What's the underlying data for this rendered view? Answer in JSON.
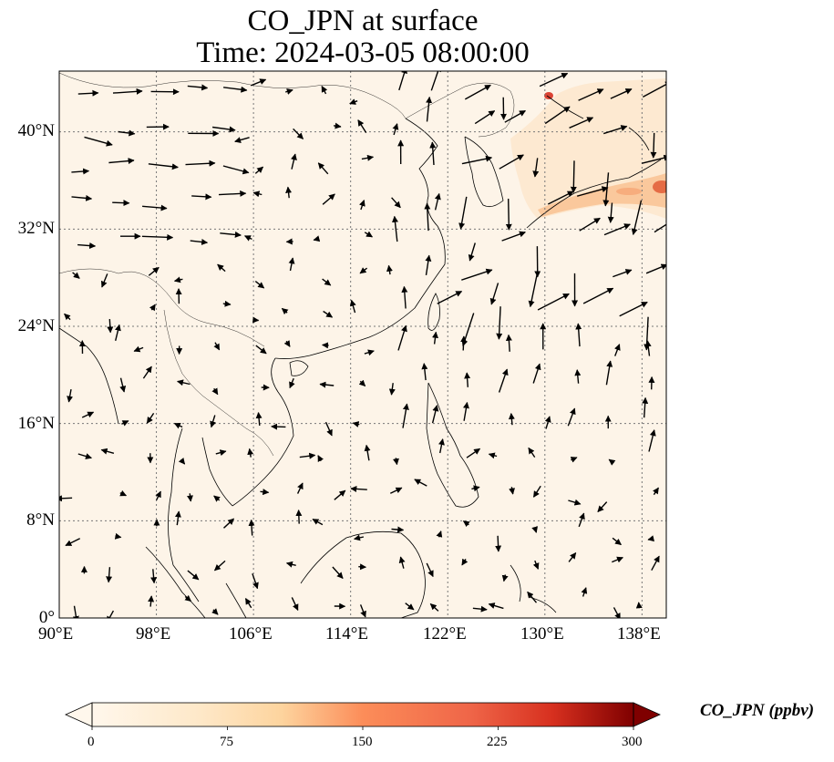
{
  "title": {
    "line1": "CO_JPN at surface",
    "line2": "Time: 2024-03-05 08:00:00"
  },
  "map": {
    "projection": "PlateCarree",
    "lon_range": [
      90,
      140
    ],
    "lat_range": [
      0,
      45
    ],
    "lat_ticks": [
      {
        "value": 40,
        "label": "40°N"
      },
      {
        "value": 32,
        "label": "32°N"
      },
      {
        "value": 24,
        "label": "24°N"
      },
      {
        "value": 16,
        "label": "16°N"
      },
      {
        "value": 8,
        "label": "8°N"
      },
      {
        "value": 0,
        "label": "0°"
      }
    ],
    "lon_ticks": [
      {
        "value": 90,
        "label": "90°E"
      },
      {
        "value": 98,
        "label": "98°E"
      },
      {
        "value": 106,
        "label": "106°E"
      },
      {
        "value": 114,
        "label": "114°E"
      },
      {
        "value": 122,
        "label": "122°E"
      },
      {
        "value": 130,
        "label": "130°E"
      },
      {
        "value": 138,
        "label": "138°E"
      }
    ],
    "gridlines": "dotted gray",
    "background_color": "#fdf4e8",
    "coastline_color": "#000000",
    "plume_colors": [
      "#fde0c4",
      "#f5a170",
      "#d7301f"
    ]
  },
  "colorbar": {
    "label": "CO_JPN (ppbv)",
    "range": [
      0,
      300
    ],
    "ticks": [
      "0",
      "75",
      "150",
      "225",
      "300"
    ],
    "colormap": "OrRd",
    "extend": "both"
  }
}
